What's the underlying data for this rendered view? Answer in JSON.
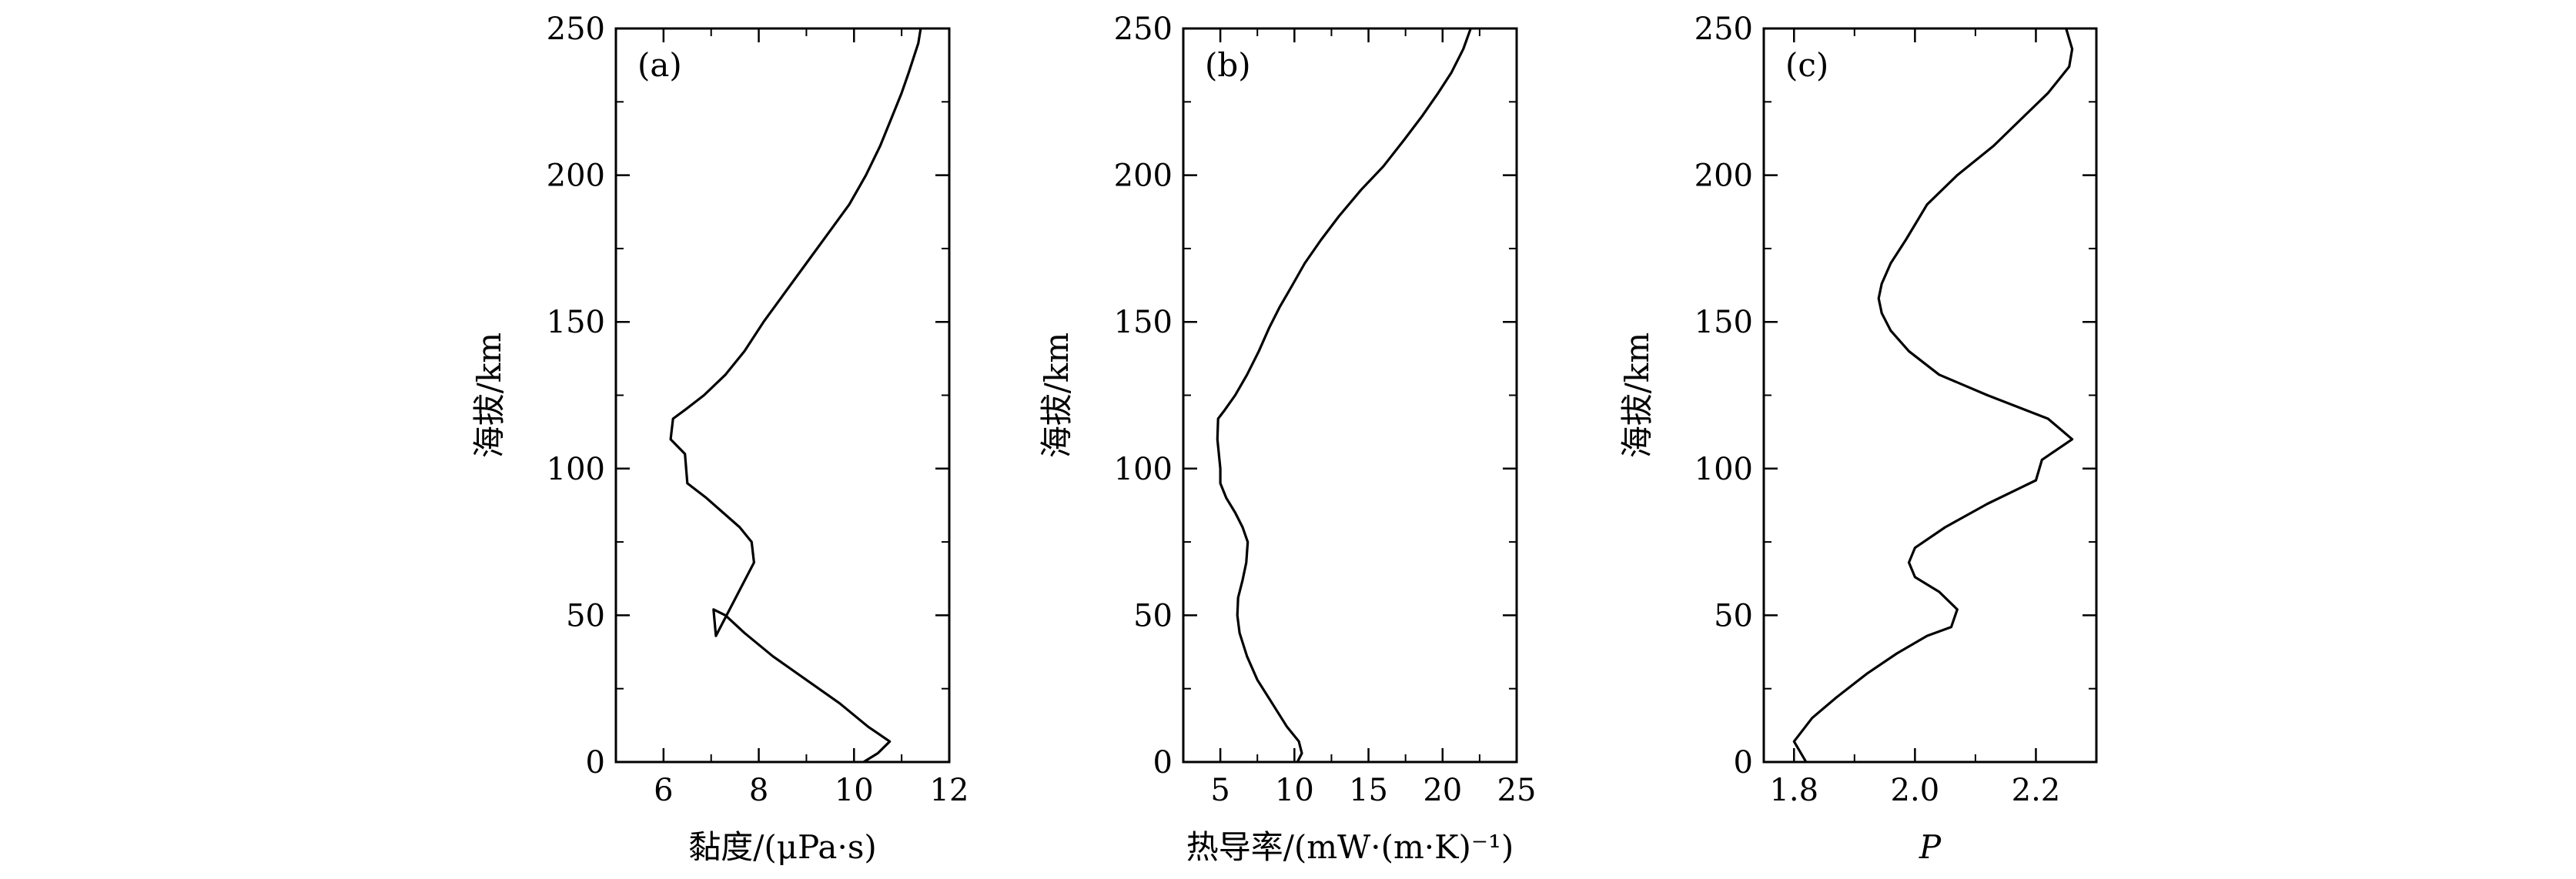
{
  "chart_data": [
    {
      "type": "line",
      "panel_label": "(a)",
      "xlabel": "黏度/(μPa·s)",
      "ylabel": "海拔/km",
      "xlim": [
        5,
        12
      ],
      "ylim": [
        0,
        250
      ],
      "xticks": [
        6,
        8,
        10,
        12
      ],
      "yticks": [
        0,
        50,
        100,
        150,
        200,
        250
      ],
      "grid": false,
      "series": [
        {
          "x": [
            10.2,
            10.5,
            10.75,
            10.3,
            9.7,
            9.0,
            8.3,
            7.7,
            7.3,
            7.05,
            7.1,
            7.9,
            7.85,
            7.6,
            7.25,
            6.9,
            6.5,
            6.45,
            6.15,
            6.2,
            6.45,
            6.85,
            7.3,
            7.7,
            8.1,
            8.55,
            9.0,
            9.45,
            9.9,
            10.25,
            10.55,
            10.8,
            11.0,
            11.15,
            11.25,
            11.35,
            11.4
          ],
          "y": [
            0,
            3,
            7,
            12,
            20,
            28,
            36,
            44,
            50,
            52,
            43,
            68,
            75,
            80,
            85,
            90,
            95,
            105,
            110,
            117,
            120,
            125,
            132,
            140,
            150,
            160,
            170,
            180,
            190,
            200,
            210,
            220,
            228,
            235,
            240,
            245,
            250
          ]
        }
      ]
    },
    {
      "type": "line",
      "panel_label": "(b)",
      "xlabel": "热导率/(mW·(m·K)⁻¹)",
      "ylabel": "海拔/km",
      "xlim": [
        2.5,
        25
      ],
      "ylim": [
        0,
        250
      ],
      "xticks": [
        5,
        10,
        15,
        20,
        25
      ],
      "yticks": [
        0,
        50,
        100,
        150,
        200,
        250
      ],
      "grid": false,
      "series": [
        {
          "x": [
            10.2,
            10.5,
            10.3,
            9.5,
            8.5,
            7.5,
            6.8,
            6.3,
            6.15,
            6.2,
            6.5,
            6.75,
            6.85,
            6.5,
            6.0,
            5.4,
            5.0,
            5.0,
            4.8,
            4.85,
            5.3,
            6.0,
            6.8,
            7.6,
            8.3,
            9.0,
            9.8,
            10.7,
            11.8,
            13.0,
            14.5,
            16.0,
            17.4,
            18.6,
            19.7,
            20.6,
            21.4,
            21.9
          ],
          "y": [
            0,
            3,
            7,
            12,
            20,
            28,
            36,
            44,
            50,
            56,
            62,
            68,
            75,
            80,
            85,
            90,
            95,
            100,
            110,
            117,
            120,
            125,
            132,
            140,
            148,
            155,
            162,
            170,
            178,
            186,
            195,
            203,
            212,
            220,
            228,
            235,
            243,
            250
          ]
        }
      ]
    },
    {
      "type": "line",
      "panel_label": "(c)",
      "xlabel": "P",
      "ylabel": "海拔/km",
      "xlim": [
        1.75,
        2.3
      ],
      "ylim": [
        0,
        250
      ],
      "xticks": [
        1.8,
        2.0,
        2.2
      ],
      "yticks": [
        0,
        50,
        100,
        150,
        200,
        250
      ],
      "grid": false,
      "series": [
        {
          "x": [
            1.82,
            1.8,
            1.83,
            1.87,
            1.92,
            1.97,
            2.02,
            2.06,
            2.07,
            2.04,
            2.0,
            1.99,
            2.0,
            2.05,
            2.12,
            2.2,
            2.21,
            2.26,
            2.22,
            2.12,
            2.04,
            1.99,
            1.96,
            1.945,
            1.94,
            1.945,
            1.96,
            1.985,
            2.02,
            2.07,
            2.13,
            2.18,
            2.22,
            2.255,
            2.26,
            2.25
          ],
          "y": [
            0,
            7,
            15,
            22,
            30,
            37,
            43,
            46,
            52,
            58,
            63,
            68,
            73,
            80,
            88,
            96,
            103,
            110,
            117,
            125,
            132,
            140,
            147,
            153,
            158,
            163,
            170,
            178,
            190,
            200,
            210,
            220,
            228,
            237,
            243,
            250
          ]
        }
      ]
    }
  ]
}
